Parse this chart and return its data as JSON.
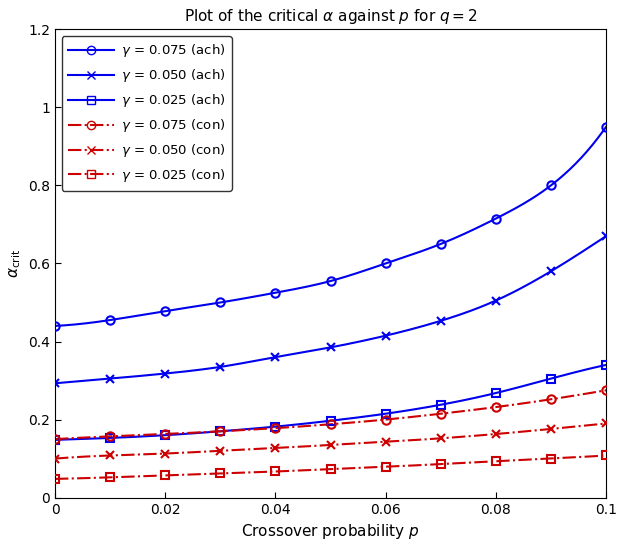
{
  "title": "Plot of the critical $\\alpha$ against $p$ for $q = 2$",
  "xlabel": "Crossover probability $p$",
  "ylabel": "$\\alpha_{\\mathrm{crit}}$",
  "p_values": [
    0.0,
    0.01,
    0.02,
    0.03,
    0.04,
    0.05,
    0.06,
    0.07,
    0.08,
    0.09,
    0.1
  ],
  "ach_075": [
    0.44,
    0.455,
    0.478,
    0.5,
    0.525,
    0.555,
    0.6,
    0.65,
    0.715,
    0.8,
    0.95
  ],
  "ach_050": [
    0.293,
    0.305,
    0.318,
    0.335,
    0.36,
    0.385,
    0.415,
    0.453,
    0.505,
    0.58,
    0.67
  ],
  "ach_025": [
    0.148,
    0.153,
    0.16,
    0.17,
    0.182,
    0.197,
    0.215,
    0.238,
    0.268,
    0.305,
    0.34
  ],
  "con_075": [
    0.15,
    0.157,
    0.163,
    0.17,
    0.178,
    0.188,
    0.2,
    0.215,
    0.232,
    0.252,
    0.275
  ],
  "con_050": [
    0.1,
    0.108,
    0.113,
    0.12,
    0.127,
    0.135,
    0.143,
    0.152,
    0.163,
    0.176,
    0.19
  ],
  "con_025": [
    0.048,
    0.052,
    0.057,
    0.062,
    0.067,
    0.073,
    0.079,
    0.086,
    0.093,
    0.1,
    0.108
  ],
  "blue_color": "#0000EE",
  "red_color": "#CC0000",
  "xlim": [
    0,
    0.1
  ],
  "ylim": [
    0,
    1.2
  ],
  "yticks": [
    0,
    0.2,
    0.4,
    0.6,
    0.8,
    1.0,
    1.2
  ],
  "xticks": [
    0,
    0.02,
    0.04,
    0.06,
    0.08,
    0.1
  ],
  "figsize": [
    6.24,
    5.48
  ],
  "dpi": 100,
  "legend_labels_ach": [
    "$\\gamma$ = 0.075 (ach)",
    "$\\gamma$ = 0.050 (ach)",
    "$\\gamma$ = 0.025 (ach)"
  ],
  "legend_labels_con": [
    "$\\gamma$ = 0.075 (con)",
    "$\\gamma$ = 0.050 (con)",
    "$\\gamma$ = 0.025 (con)"
  ]
}
